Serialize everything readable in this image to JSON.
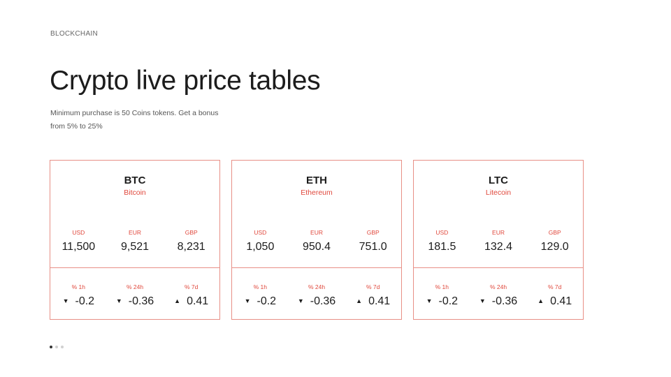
{
  "header": {
    "eyebrow": "BLOCKCHAIN",
    "title": "Crypto live price tables",
    "subtitle_line1": "Minimum purchase is 50 Coins tokens. Get a bonus",
    "subtitle_line2": "from 5% to 25%"
  },
  "colors": {
    "accent": "#e0483c",
    "border": "#e88f86",
    "text": "#1c1c1c"
  },
  "cards": [
    {
      "ticker": "BTC",
      "name": "Bitcoin",
      "prices": [
        {
          "label": "USD",
          "value": "11,500"
        },
        {
          "label": "EUR",
          "value": "9,521"
        },
        {
          "label": "GBP",
          "value": "8,231"
        }
      ],
      "changes": [
        {
          "label": "% 1h",
          "arrow": "▼",
          "arrow_icon": "down-triangle-icon",
          "value": "-0.2"
        },
        {
          "label": "% 24h",
          "arrow": "▼",
          "arrow_icon": "down-triangle-icon",
          "value": "-0.36"
        },
        {
          "label": "% 7d",
          "arrow": "▲",
          "arrow_icon": "up-triangle-icon",
          "value": "0.41"
        }
      ]
    },
    {
      "ticker": "ETH",
      "name": "Ethereum",
      "prices": [
        {
          "label": "USD",
          "value": "1,050"
        },
        {
          "label": "EUR",
          "value": "950.4"
        },
        {
          "label": "GBP",
          "value": "751.0"
        }
      ],
      "changes": [
        {
          "label": "% 1h",
          "arrow": "▼",
          "arrow_icon": "down-triangle-icon",
          "value": "-0.2"
        },
        {
          "label": "% 24h",
          "arrow": "▼",
          "arrow_icon": "down-triangle-icon",
          "value": "-0.36"
        },
        {
          "label": "% 7d",
          "arrow": "▲",
          "arrow_icon": "up-triangle-icon",
          "value": "0.41"
        }
      ]
    },
    {
      "ticker": "LTC",
      "name": "Litecoin",
      "prices": [
        {
          "label": "USD",
          "value": "181.5"
        },
        {
          "label": "EUR",
          "value": "132.4"
        },
        {
          "label": "GBP",
          "value": "129.0"
        }
      ],
      "changes": [
        {
          "label": "% 1h",
          "arrow": "▼",
          "arrow_icon": "down-triangle-icon",
          "value": "-0.2"
        },
        {
          "label": "% 24h",
          "arrow": "▼",
          "arrow_icon": "down-triangle-icon",
          "value": "-0.36"
        },
        {
          "label": "% 7d",
          "arrow": "▲",
          "arrow_icon": "up-triangle-icon",
          "value": "0.41"
        }
      ]
    }
  ],
  "pagination": {
    "total": 3,
    "active_index": 0
  }
}
